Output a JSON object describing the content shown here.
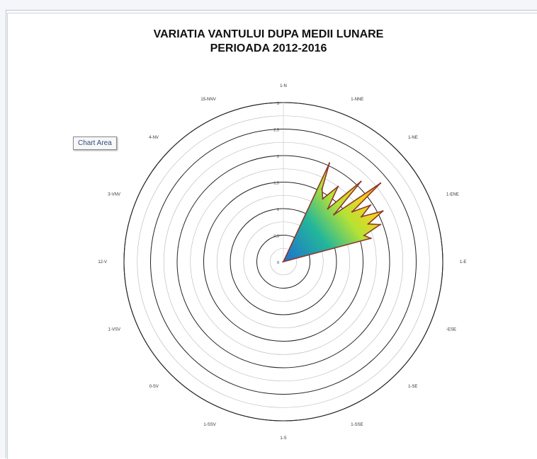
{
  "tooltip": {
    "label": "Chart Area"
  },
  "chart_data": {
    "type": "radar",
    "title": "VARIATIA VANTULUI DUPA MEDII LUNARE",
    "subtitle": "PERIOADA 2012-2016",
    "directions": [
      "1-N",
      "1-NNE",
      "1-NE",
      "1-ENE",
      "1-E",
      "-ESE",
      "1-SE",
      "1-SSE",
      "1-S",
      "1-SSV",
      "0-SV",
      "1-VSV",
      "12-V",
      "3-VNV",
      "4-NV",
      "15-NNV"
    ],
    "radial_ticks": [
      "0",
      "0,5",
      "1",
      "1,5",
      "2",
      "2,5",
      "3"
    ],
    "rlim": [
      0,
      3
    ],
    "minor_step": 0.25,
    "series": [
      {
        "values": [
          {
            "angle": 25,
            "value": 2.05
          },
          {
            "angle": 28,
            "value": 1.55
          },
          {
            "angle": 32,
            "value": 1.4
          },
          {
            "angle": 36,
            "value": 1.75
          },
          {
            "angle": 40,
            "value": 1.3
          },
          {
            "angle": 44,
            "value": 2.1
          },
          {
            "angle": 47,
            "value": 1.3
          },
          {
            "angle": 51,
            "value": 2.35
          },
          {
            "angle": 54,
            "value": 1.6
          },
          {
            "angle": 57,
            "value": 1.95
          },
          {
            "angle": 60,
            "value": 1.7
          },
          {
            "angle": 63,
            "value": 2.1
          },
          {
            "angle": 66,
            "value": 1.75
          },
          {
            "angle": 69,
            "value": 1.95
          },
          {
            "angle": 72,
            "value": 1.6
          },
          {
            "angle": 75,
            "value": 1.7
          }
        ]
      }
    ],
    "colors": {
      "stroke": "#8b3a2a",
      "fill_low": "#1f6fd1",
      "fill_mid": "#a8e03a",
      "fill_high": "#f5b321",
      "fill_top": "#e14b1c"
    }
  }
}
